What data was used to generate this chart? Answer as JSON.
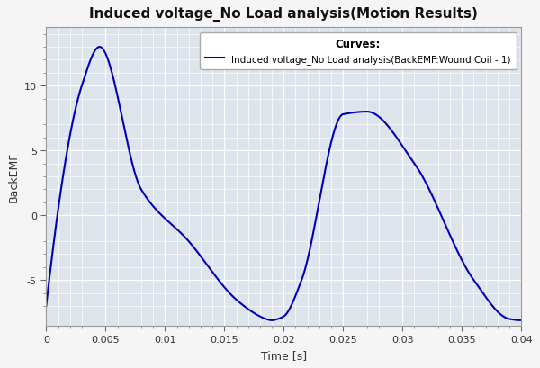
{
  "title": "Induced voltage_No Load analysis(Motion Results)",
  "xlabel": "Time [s]",
  "ylabel": "BackEMF",
  "legend_label": "Induced voltage_No Load analysis(BackEMF:Wound Coil - 1)",
  "legend_title": "Curves:",
  "xlim": [
    0,
    0.04
  ],
  "ylim": [
    -8.5,
    14.5
  ],
  "xticks": [
    0,
    0.005,
    0.01,
    0.015,
    0.02,
    0.025,
    0.03,
    0.035,
    0.04
  ],
  "yticks": [
    -5,
    0,
    5,
    10
  ],
  "line_color": "#0000bb",
  "plot_bg_color": "#dde4ec",
  "fig_bg_color": "#f5f5f5",
  "grid_color": "#ffffff",
  "title_color": "#111111",
  "axis_label_color": "#333333",
  "tick_label_color": "#333333",
  "key_t": [
    0,
    0.003,
    0.0045,
    0.008,
    0.012,
    0.016,
    0.018,
    0.0185,
    0.019,
    0.0195,
    0.02,
    0.0215,
    0.025,
    0.027,
    0.031,
    0.036,
    0.039,
    0.04
  ],
  "key_y": [
    -7,
    10,
    13,
    2,
    -2,
    -6.5,
    -7.8,
    -8.0,
    -8.1,
    -8.0,
    -7.8,
    -5,
    7.8,
    8,
    4,
    -5,
    -8,
    -8.1
  ],
  "figsize": [
    6.0,
    4.1
  ],
  "dpi": 100
}
